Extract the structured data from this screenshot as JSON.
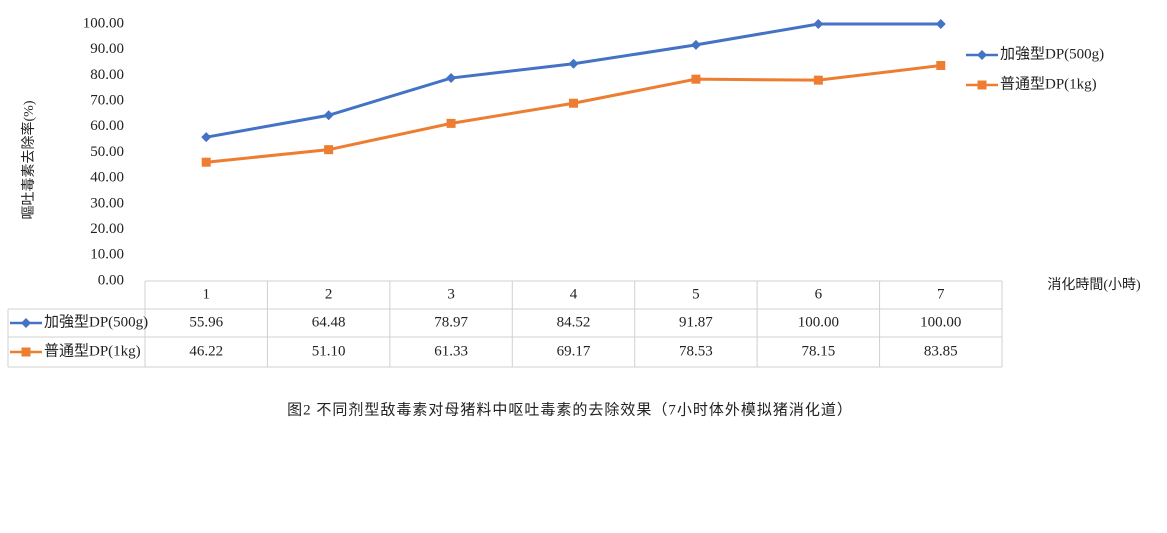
{
  "chart_data": {
    "type": "line",
    "caption": "图2 不同剂型敌毒素对母猪料中呕吐毒素的去除效果（7小时体外模拟猪消化道）",
    "x_label": "消化時間(小時)",
    "y_label": "嘔吐毒素去除率(%)",
    "categories": [
      "1",
      "2",
      "3",
      "4",
      "5",
      "6",
      "7"
    ],
    "series": [
      {
        "name": "加強型DP(500g)",
        "color": "#4472c4",
        "marker": "diamond",
        "values": [
          55.96,
          64.48,
          78.97,
          84.52,
          91.87,
          100,
          100
        ],
        "value_labels": [
          "55.96",
          "64.48",
          "78.97",
          "84.52",
          "91.87",
          "100.00",
          "100.00"
        ]
      },
      {
        "name": "普通型DP(1kg)",
        "color": "#ed7d31",
        "marker": "square",
        "values": [
          46.22,
          51.1,
          61.33,
          69.17,
          78.53,
          78.15,
          83.85
        ],
        "value_labels": [
          "46.22",
          "51.10",
          "61.33",
          "69.17",
          "78.53",
          "78.15",
          "83.85"
        ]
      }
    ],
    "ylim": [
      0,
      100
    ],
    "yticks": [
      {
        "value": 0,
        "label": "0.00"
      },
      {
        "value": 10,
        "label": "10.00"
      },
      {
        "value": 20,
        "label": "20.00"
      },
      {
        "value": 30,
        "label": "30.00"
      },
      {
        "value": 40,
        "label": "40.00"
      },
      {
        "value": 50,
        "label": "50.00"
      },
      {
        "value": 60,
        "label": "60.00"
      },
      {
        "value": 70,
        "label": "70.00"
      },
      {
        "value": 80,
        "label": "80.00"
      },
      {
        "value": 90,
        "label": "90.00"
      },
      {
        "value": 100,
        "label": "100.00"
      }
    ],
    "grid": false,
    "legend": "right"
  }
}
